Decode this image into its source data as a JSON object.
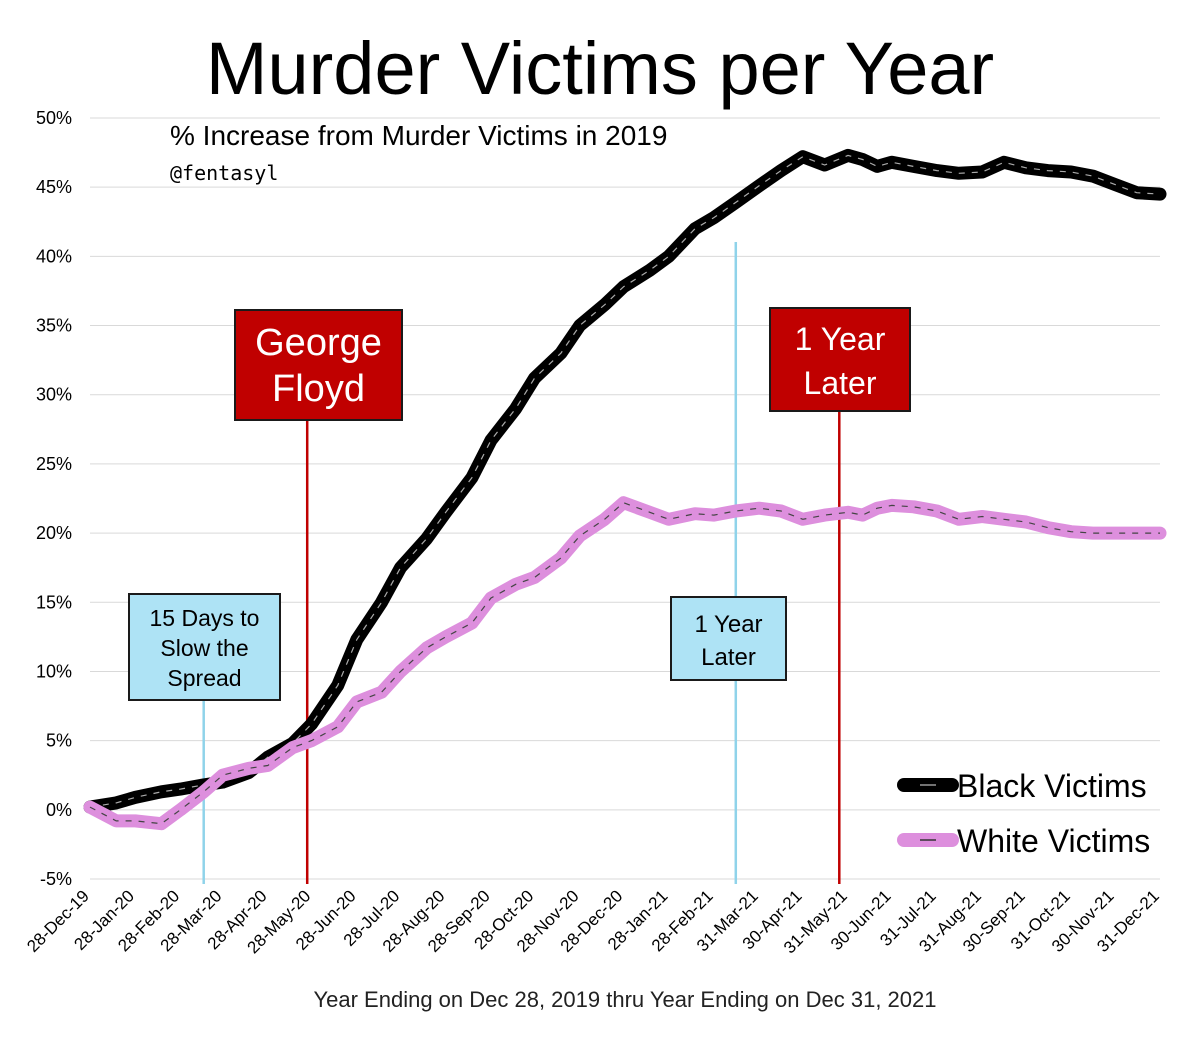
{
  "chart_data": {
    "type": "line",
    "title": "Murder Victims per Year",
    "subtitle": "% Increase from Murder Victims in 2019",
    "handle": "@fentasyl",
    "xlabel": "Year Ending on Dec 28, 2019 thru Year Ending on Dec 31, 2021",
    "ylabel": "",
    "ylim": [
      -5,
      50
    ],
    "yticks": [
      "-5%",
      "0%",
      "5%",
      "10%",
      "15%",
      "20%",
      "25%",
      "30%",
      "35%",
      "40%",
      "45%",
      "50%"
    ],
    "grid": true,
    "legend_position": "bottom-right",
    "xtick_labels": [
      "28-Dec-19",
      "28-Jan-20",
      "28-Feb-20",
      "28-Mar-20",
      "28-Apr-20",
      "28-May-20",
      "28-Jun-20",
      "28-Jul-20",
      "28-Aug-20",
      "28-Sep-20",
      "28-Oct-20",
      "28-Nov-20",
      "28-Dec-20",
      "28-Jan-21",
      "28-Feb-21",
      "31-Mar-21",
      "30-Apr-21",
      "31-May-21",
      "30-Jun-21",
      "31-Jul-21",
      "31-Aug-21",
      "30-Sep-21",
      "31-Oct-21",
      "30-Nov-21",
      "31-Dec-21"
    ],
    "series": [
      {
        "name": "Black Victims",
        "color": "#000000",
        "x": [
          "28-Dec-19",
          "15-Jan-20",
          "28-Jan-20",
          "15-Feb-20",
          "28-Feb-20",
          "15-Mar-20",
          "28-Mar-20",
          "15-Apr-20",
          "28-Apr-20",
          "15-May-20",
          "28-May-20",
          "15-Jun-20",
          "28-Jun-20",
          "15-Jul-20",
          "28-Jul-20",
          "15-Aug-20",
          "28-Aug-20",
          "15-Sep-20",
          "28-Sep-20",
          "15-Oct-20",
          "28-Oct-20",
          "15-Nov-20",
          "28-Nov-20",
          "15-Dec-20",
          "28-Dec-20",
          "15-Jan-21",
          "28-Jan-21",
          "15-Feb-21",
          "28-Feb-21",
          "15-Mar-21",
          "31-Mar-21",
          "15-Apr-21",
          "30-Apr-21",
          "15-May-21",
          "31-May-21",
          "10-Jun-21",
          "20-Jun-21",
          "30-Jun-21",
          "15-Jul-21",
          "31-Jul-21",
          "15-Aug-21",
          "31-Aug-21",
          "15-Sep-21",
          "30-Sep-21",
          "15-Oct-21",
          "31-Oct-21",
          "15-Nov-21",
          "30-Nov-21",
          "15-Dec-21",
          "31-Dec-21"
        ],
        "values": [
          0.2,
          0.5,
          0.9,
          1.3,
          1.5,
          1.8,
          2.0,
          2.7,
          3.8,
          4.8,
          6.2,
          9.0,
          12.3,
          15.0,
          17.5,
          19.6,
          21.5,
          24.0,
          26.7,
          29.0,
          31.2,
          33.0,
          35.0,
          36.5,
          37.8,
          39.0,
          40.0,
          42.0,
          42.8,
          43.9,
          45.1,
          46.2,
          47.2,
          46.6,
          47.3,
          47.0,
          46.5,
          46.8,
          46.5,
          46.2,
          46.0,
          46.1,
          46.8,
          46.4,
          46.2,
          46.1,
          45.8,
          45.2,
          44.6,
          44.5
        ]
      },
      {
        "name": "White Victims",
        "color": "#dd8fdd",
        "x": [
          "28-Dec-19",
          "15-Jan-20",
          "28-Jan-20",
          "15-Feb-20",
          "28-Feb-20",
          "15-Mar-20",
          "28-Mar-20",
          "15-Apr-20",
          "28-Apr-20",
          "15-May-20",
          "28-May-20",
          "15-Jun-20",
          "28-Jun-20",
          "15-Jul-20",
          "28-Jul-20",
          "15-Aug-20",
          "28-Aug-20",
          "15-Sep-20",
          "28-Sep-20",
          "15-Oct-20",
          "28-Oct-20",
          "15-Nov-20",
          "28-Nov-20",
          "15-Dec-20",
          "28-Dec-20",
          "15-Jan-21",
          "28-Jan-21",
          "15-Feb-21",
          "28-Feb-21",
          "15-Mar-21",
          "31-Mar-21",
          "15-Apr-21",
          "30-Apr-21",
          "15-May-21",
          "31-May-21",
          "10-Jun-21",
          "20-Jun-21",
          "30-Jun-21",
          "15-Jul-21",
          "31-Jul-21",
          "15-Aug-21",
          "31-Aug-21",
          "15-Sep-21",
          "30-Sep-21",
          "15-Oct-21",
          "31-Oct-21",
          "15-Nov-21",
          "30-Nov-21",
          "15-Dec-21",
          "31-Dec-21"
        ],
        "values": [
          0.2,
          -0.8,
          -0.8,
          -1.0,
          0.0,
          1.3,
          2.5,
          3.0,
          3.2,
          4.5,
          5.0,
          6.0,
          7.8,
          8.5,
          10.0,
          11.7,
          12.5,
          13.5,
          15.3,
          16.3,
          16.8,
          18.2,
          19.8,
          21.0,
          22.2,
          21.5,
          21.0,
          21.4,
          21.3,
          21.6,
          21.8,
          21.6,
          21.0,
          21.3,
          21.5,
          21.3,
          21.8,
          22.0,
          21.9,
          21.6,
          21.0,
          21.2,
          21.0,
          20.8,
          20.4,
          20.1,
          20.0,
          20.0,
          20.0,
          20.0
        ]
      }
    ],
    "annotations": [
      {
        "label": [
          "15 Days to",
          "Slow the",
          "Spread"
        ],
        "x": "15-Mar-20",
        "style": "blue"
      },
      {
        "label": [
          "George",
          "Floyd"
        ],
        "x": "25-May-20",
        "style": "red"
      },
      {
        "label": [
          "1 Year",
          "Later"
        ],
        "x": "15-Mar-21",
        "style": "blue"
      },
      {
        "label": [
          "1 Year",
          "Later"
        ],
        "x": "25-May-21",
        "style": "red"
      }
    ]
  }
}
